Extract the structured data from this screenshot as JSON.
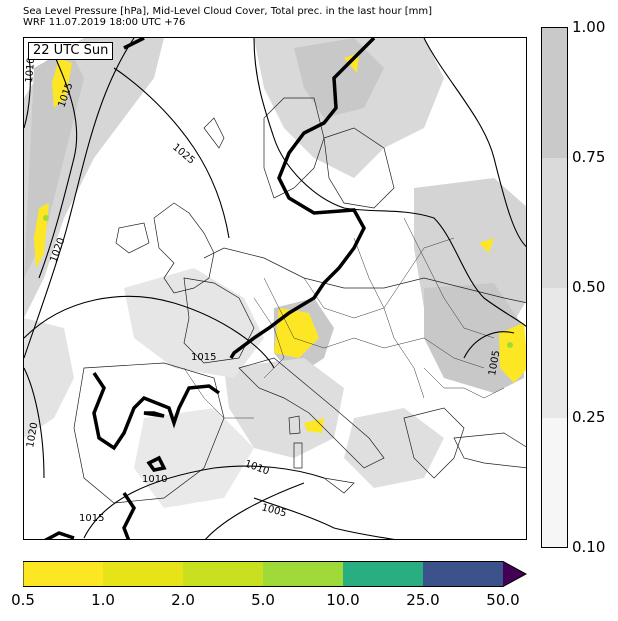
{
  "title_line1": "Sea Level Pressure [hPa], Mid-Level Cloud Cover, Total prec. in the last hour [mm]",
  "title_line2": "WRF 11.07.2019 18:00 UTC +76",
  "time_badge": "22 UTC Sun",
  "isobar_labels": [
    "1010",
    "1015",
    "1025",
    "1020",
    "1015",
    "1020",
    "1010",
    "1010",
    "1015",
    "1005",
    "1005"
  ],
  "cloud_cover_scale": {
    "ticks": [
      "1.00",
      "0.75",
      "0.50",
      "0.25",
      "0.10"
    ],
    "colors": [
      "#c9c9c9",
      "#dadada",
      "#e8e8e8",
      "#f6f6f6"
    ]
  },
  "precip_scale": {
    "ticks": [
      "0.5",
      "1.0",
      "2.0",
      "5.0",
      "10.0",
      "25.0",
      "50.0"
    ],
    "colors": [
      "#fde725",
      "#e6e419",
      "#c8e020",
      "#a0da39",
      "#28ae80",
      "#3b528b",
      "#440154"
    ]
  }
}
